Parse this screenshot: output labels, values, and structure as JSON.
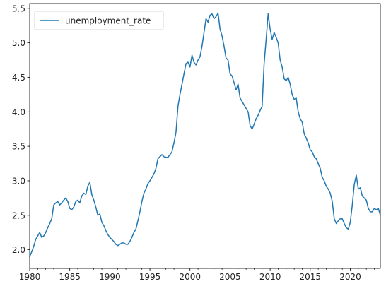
{
  "chart_data": {
    "type": "line",
    "title": "",
    "xlabel": "",
    "ylabel": "",
    "xlim": [
      1980,
      2023.75
    ],
    "ylim": [
      1.73,
      5.57
    ],
    "xticks": [
      1980,
      1985,
      1990,
      1995,
      2000,
      2005,
      2010,
      2015,
      2020
    ],
    "xtick_labels": [
      "1980",
      "1985",
      "1990",
      "1995",
      "2000",
      "2005",
      "2010",
      "2015",
      "2020"
    ],
    "yticks": [
      2.0,
      2.5,
      3.0,
      3.5,
      4.0,
      4.5,
      5.0,
      5.5
    ],
    "ytick_labels": [
      "2.0",
      "2.5",
      "3.0",
      "3.5",
      "4.0",
      "4.5",
      "5.0",
      "5.5"
    ],
    "minor_xticks_per_year": true,
    "grid": false,
    "legend_placement": "upper-left",
    "line_color": "#1f77b4",
    "series": [
      {
        "name": "unemployment_rate",
        "x_start": 1980,
        "x_step": 0.25,
        "values": [
          1.9,
          1.97,
          2.05,
          2.15,
          2.2,
          2.25,
          2.18,
          2.2,
          2.25,
          2.32,
          2.38,
          2.45,
          2.65,
          2.68,
          2.7,
          2.65,
          2.68,
          2.72,
          2.75,
          2.7,
          2.6,
          2.58,
          2.62,
          2.7,
          2.72,
          2.68,
          2.78,
          2.82,
          2.8,
          2.92,
          2.98,
          2.8,
          2.72,
          2.62,
          2.5,
          2.52,
          2.4,
          2.35,
          2.28,
          2.22,
          2.18,
          2.15,
          2.12,
          2.08,
          2.06,
          2.08,
          2.1,
          2.1,
          2.08,
          2.08,
          2.12,
          2.18,
          2.25,
          2.3,
          2.42,
          2.55,
          2.7,
          2.82,
          2.88,
          2.96,
          3.0,
          3.05,
          3.1,
          3.18,
          3.32,
          3.35,
          3.38,
          3.35,
          3.34,
          3.34,
          3.38,
          3.42,
          3.55,
          3.7,
          4.08,
          4.25,
          4.4,
          4.55,
          4.7,
          4.72,
          4.65,
          4.82,
          4.72,
          4.68,
          4.75,
          4.8,
          4.95,
          5.15,
          5.35,
          5.3,
          5.4,
          5.42,
          5.35,
          5.38,
          5.43,
          5.2,
          5.1,
          4.95,
          4.78,
          4.75,
          4.55,
          4.52,
          4.42,
          4.32,
          4.4,
          4.2,
          4.15,
          4.1,
          4.05,
          4.0,
          3.8,
          3.75,
          3.82,
          3.9,
          3.95,
          4.02,
          4.08,
          4.7,
          5.05,
          5.42,
          5.2,
          5.05,
          5.15,
          5.08,
          5.0,
          4.75,
          4.65,
          4.48,
          4.45,
          4.5,
          4.4,
          4.25,
          4.18,
          4.2,
          4.0,
          3.9,
          3.85,
          3.68,
          3.62,
          3.55,
          3.45,
          3.42,
          3.35,
          3.32,
          3.25,
          3.18,
          3.05,
          3.0,
          2.92,
          2.88,
          2.82,
          2.7,
          2.45,
          2.38,
          2.42,
          2.45,
          2.45,
          2.38,
          2.32,
          2.3,
          2.4,
          2.65,
          2.95,
          3.08,
          2.88,
          2.9,
          2.78,
          2.75,
          2.72,
          2.6,
          2.55,
          2.55,
          2.6,
          2.58,
          2.6,
          2.5
        ]
      }
    ]
  }
}
